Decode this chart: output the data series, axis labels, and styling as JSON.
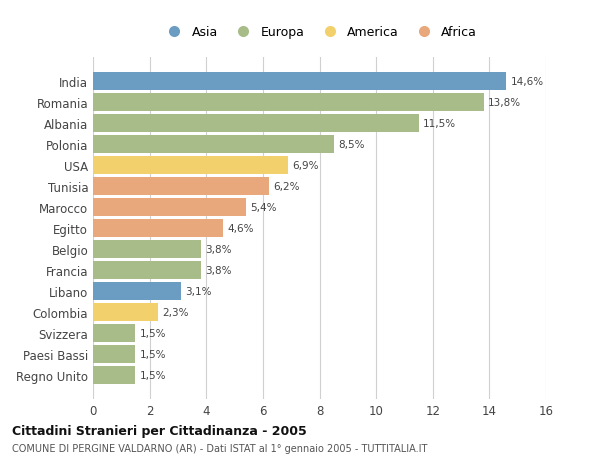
{
  "countries": [
    "India",
    "Romania",
    "Albania",
    "Polonia",
    "USA",
    "Tunisia",
    "Marocco",
    "Egitto",
    "Belgio",
    "Francia",
    "Libano",
    "Colombia",
    "Svizzera",
    "Paesi Bassi",
    "Regno Unito"
  ],
  "values": [
    14.6,
    13.8,
    11.5,
    8.5,
    6.9,
    6.2,
    5.4,
    4.6,
    3.8,
    3.8,
    3.1,
    2.3,
    1.5,
    1.5,
    1.5
  ],
  "labels": [
    "14,6%",
    "13,8%",
    "11,5%",
    "8,5%",
    "6,9%",
    "6,2%",
    "5,4%",
    "4,6%",
    "3,8%",
    "3,8%",
    "3,1%",
    "2,3%",
    "1,5%",
    "1,5%",
    "1,5%"
  ],
  "continents": [
    "Asia",
    "Europa",
    "Europa",
    "Europa",
    "America",
    "Africa",
    "Africa",
    "Africa",
    "Europa",
    "Europa",
    "Asia",
    "America",
    "Europa",
    "Europa",
    "Europa"
  ],
  "colors": {
    "Asia": "#6b9dc2",
    "Europa": "#a8bc8a",
    "America": "#f2d06b",
    "Africa": "#e8a87c"
  },
  "legend_order": [
    "Asia",
    "Europa",
    "America",
    "Africa"
  ],
  "title": "Cittadini Stranieri per Cittadinanza - 2005",
  "subtitle": "COMUNE DI PERGINE VALDARNO (AR) - Dati ISTAT al 1° gennaio 2005 - TUTTITALIA.IT",
  "xlim": [
    0,
    16
  ],
  "xticks": [
    0,
    2,
    4,
    6,
    8,
    10,
    12,
    14,
    16
  ],
  "background_color": "#ffffff",
  "grid_color": "#d0d0d0",
  "bar_height": 0.85
}
